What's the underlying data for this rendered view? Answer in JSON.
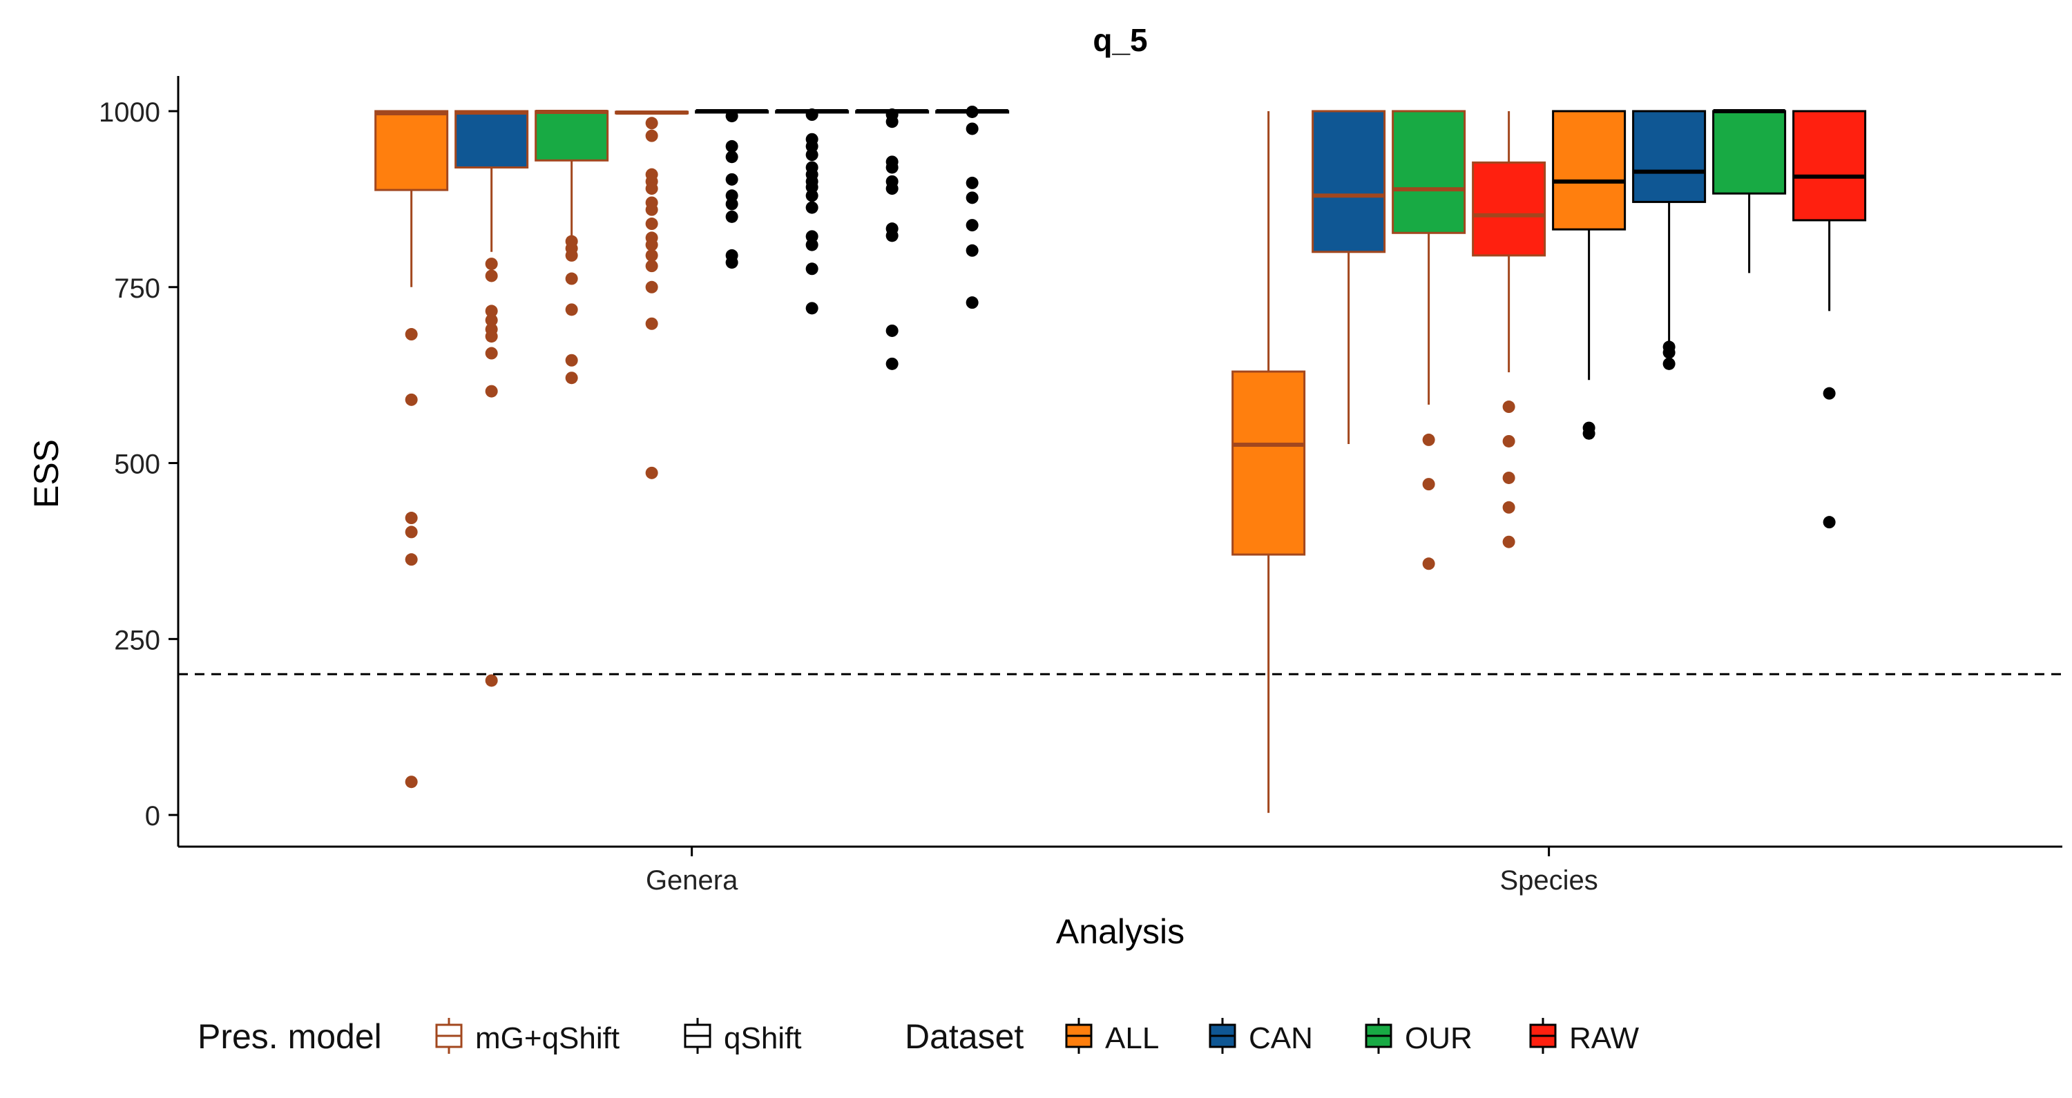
{
  "chart_data": {
    "type": "box",
    "title": "q_5",
    "xlabel": "Analysis",
    "ylabel": "ESS",
    "ylim": [
      -45,
      1050
    ],
    "yticks": [
      0,
      250,
      500,
      750,
      1000
    ],
    "categories": [
      "Genera",
      "Species"
    ],
    "threshold": 200,
    "colors": {
      "ALL": "#ff7f0e",
      "CAN": "#0f5794",
      "OUR": "#18aa44",
      "RAW": "#ff200f",
      "mG+qShift": "#a2471e",
      "qShift": "#000000"
    },
    "legend": {
      "position": "bottom",
      "model_title": "Pres. model",
      "models": [
        "mG+qShift",
        "qShift"
      ],
      "dataset_title": "Dataset",
      "datasets": [
        "ALL",
        "CAN",
        "OUR",
        "RAW"
      ]
    },
    "boxes": [
      {
        "category": "Genera",
        "model": "mG+qShift",
        "dataset": "ALL",
        "min": 750,
        "q1": 888,
        "median": 997,
        "q3": 1000,
        "max": 1000,
        "outliers": [
          683,
          590,
          422,
          402,
          363,
          47
        ]
      },
      {
        "category": "Genera",
        "model": "mG+qShift",
        "dataset": "CAN",
        "min": 800,
        "q1": 920,
        "median": 998,
        "q3": 1000,
        "max": 1000,
        "outliers": [
          783,
          766,
          716,
          703,
          690,
          680,
          656,
          602,
          191
        ]
      },
      {
        "category": "Genera",
        "model": "mG+qShift",
        "dataset": "OUR",
        "min": 822,
        "q1": 930,
        "median": 999,
        "q3": 1000,
        "max": 1000,
        "outliers": [
          815,
          805,
          795,
          762,
          718,
          646,
          621
        ]
      },
      {
        "category": "Genera",
        "model": "mG+qShift",
        "dataset": "RAW",
        "min": 997,
        "q1": 997,
        "median": 998,
        "q3": 999,
        "max": 1000,
        "outliers": [
          983,
          965,
          910,
          900,
          890,
          870,
          860,
          840,
          820,
          810,
          795,
          780,
          750,
          698,
          486
        ]
      },
      {
        "category": "Genera",
        "model": "qShift",
        "dataset": "ALL",
        "min": 998,
        "q1": 999,
        "median": 1000,
        "q3": 1000,
        "max": 1000,
        "outliers": [
          993,
          950,
          935,
          903,
          880,
          868,
          850,
          795,
          785
        ]
      },
      {
        "category": "Genera",
        "model": "qShift",
        "dataset": "CAN",
        "min": 998,
        "q1": 999,
        "median": 1000,
        "q3": 1000,
        "max": 1000,
        "outliers": [
          995,
          960,
          950,
          938,
          920,
          910,
          900,
          892,
          880,
          863,
          822,
          810,
          776,
          720
        ]
      },
      {
        "category": "Genera",
        "model": "qShift",
        "dataset": "OUR",
        "min": 998,
        "q1": 999,
        "median": 1000,
        "q3": 1000,
        "max": 1000,
        "outliers": [
          995,
          985,
          928,
          920,
          900,
          890,
          833,
          823,
          688,
          641
        ]
      },
      {
        "category": "Genera",
        "model": "qShift",
        "dataset": "RAW",
        "min": 998,
        "q1": 999,
        "median": 1000,
        "q3": 1000,
        "max": 1000,
        "outliers": [
          999,
          975,
          898,
          877,
          838,
          802,
          728
        ]
      },
      {
        "category": "Species",
        "model": "mG+qShift",
        "dataset": "ALL",
        "min": 3,
        "q1": 370,
        "median": 526,
        "q3": 630,
        "max": 1000,
        "outliers": []
      },
      {
        "category": "Species",
        "model": "mG+qShift",
        "dataset": "CAN",
        "min": 527,
        "q1": 800,
        "median": 880,
        "q3": 1000,
        "max": 1000,
        "outliers": []
      },
      {
        "category": "Species",
        "model": "mG+qShift",
        "dataset": "OUR",
        "min": 583,
        "q1": 827,
        "median": 889,
        "q3": 1000,
        "max": 1000,
        "outliers": [
          533,
          470,
          357
        ]
      },
      {
        "category": "Species",
        "model": "mG+qShift",
        "dataset": "RAW",
        "min": 629,
        "q1": 795,
        "median": 852,
        "q3": 927,
        "max": 1000,
        "outliers": [
          580,
          531,
          479,
          437,
          388
        ]
      },
      {
        "category": "Species",
        "model": "qShift",
        "dataset": "ALL",
        "min": 618,
        "q1": 832,
        "median": 900,
        "q3": 1000,
        "max": 1000,
        "outliers": [
          550,
          542
        ]
      },
      {
        "category": "Species",
        "model": "qShift",
        "dataset": "CAN",
        "min": 672,
        "q1": 871,
        "median": 914,
        "q3": 1000,
        "max": 1000,
        "outliers": [
          665,
          657,
          641
        ]
      },
      {
        "category": "Species",
        "model": "qShift",
        "dataset": "OUR",
        "min": 770,
        "q1": 883,
        "median": 1000,
        "q3": 1000,
        "max": 1000,
        "outliers": []
      },
      {
        "category": "Species",
        "model": "qShift",
        "dataset": "RAW",
        "min": 716,
        "q1": 845,
        "median": 907,
        "q3": 1000,
        "max": 1000,
        "outliers": [
          599,
          416
        ]
      }
    ]
  }
}
